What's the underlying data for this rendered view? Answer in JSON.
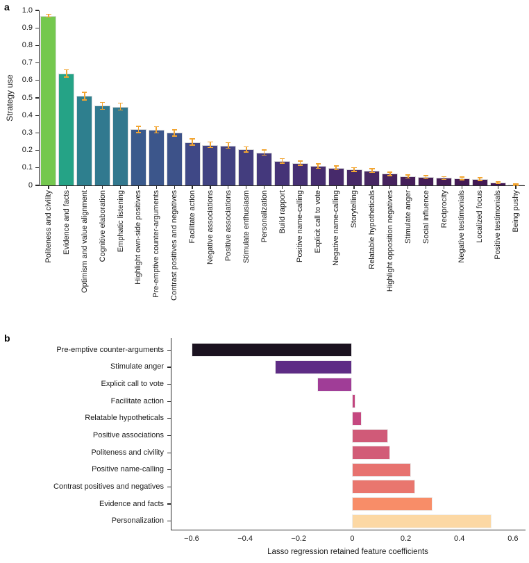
{
  "figure": {
    "panel_a_label": "a",
    "panel_b_label": "b",
    "background": "#ffffff",
    "text_color": "#1a1a1a",
    "axis_color": "#2b2b2b"
  },
  "chart_data": [
    {
      "id": "a",
      "type": "bar",
      "title": "",
      "xlabel": "",
      "ylabel": "Strategy use",
      "ylim": [
        0,
        1.0
      ],
      "ytick_values": [
        0,
        0.1,
        0.2,
        0.3,
        0.4,
        0.5,
        0.6,
        0.7,
        0.8,
        0.9,
        1.0
      ],
      "ytick_labels": [
        "0",
        "0.1",
        "0.2",
        "0.3",
        "0.4",
        "0.5",
        "0.6",
        "0.7",
        "0.8",
        "0.9",
        "1.0"
      ],
      "grid": false,
      "legend": "none",
      "error_bar_color": "#f2a532",
      "bar_edge_color": "#dcdcdc",
      "categories": [
        "Politeness and civility",
        "Evidence and facts",
        "Optimism and value alignment",
        "Cognitive elaboration",
        "Emphatic listening",
        "Highlight own-side positives",
        "Pre-emptive counter-arguments",
        "Contrast positives and negatives",
        "Facilitate action",
        "Negative associations",
        "Positive associations",
        "Stimulate enthusiasm",
        "Personalization",
        "Build rapport",
        "Positive name-calling",
        "Explicit call to vote",
        "Negative name-calling",
        "Storytelling",
        "Relatable hypotheticals",
        "Highlight opposition negatives",
        "Stimulate anger",
        "Social influence",
        "Reciprocity",
        "Negative testimonials",
        "Localized focus",
        "Positive testimonials",
        "Being pushy"
      ],
      "values": [
        0.97,
        0.64,
        0.51,
        0.455,
        0.45,
        0.32,
        0.318,
        0.3,
        0.248,
        0.232,
        0.228,
        0.205,
        0.188,
        0.14,
        0.128,
        0.11,
        0.1,
        0.09,
        0.085,
        0.066,
        0.05,
        0.046,
        0.042,
        0.04,
        0.035,
        0.015,
        0.005
      ],
      "errors": [
        0.008,
        0.02,
        0.022,
        0.02,
        0.02,
        0.018,
        0.018,
        0.018,
        0.018,
        0.016,
        0.016,
        0.015,
        0.015,
        0.013,
        0.012,
        0.012,
        0.011,
        0.011,
        0.011,
        0.01,
        0.009,
        0.009,
        0.008,
        0.008,
        0.008,
        0.005,
        0.004
      ],
      "bar_colors": [
        "#74c84e",
        "#25a386",
        "#2e7f8e",
        "#31798f",
        "#32788e",
        "#3a5a8c",
        "#3c568b",
        "#3d5289",
        "#3f4886",
        "#414382",
        "#424181",
        "#433d7e",
        "#44387c",
        "#453377",
        "#463073",
        "#462d6f",
        "#472a6b",
        "#472967",
        "#472763",
        "#46235e",
        "#451f5a",
        "#441d57",
        "#441c56",
        "#431b55",
        "#431a54",
        "#421654",
        "#421253"
      ]
    },
    {
      "id": "b",
      "type": "bar-horizontal",
      "title": "",
      "xlabel": "Lasso regression retained feature coefficients",
      "ylabel": "",
      "xlim": [
        -0.675,
        0.647
      ],
      "xtick_values": [
        -0.6,
        -0.4,
        -0.2,
        0,
        0.2,
        0.4,
        0.6
      ],
      "xtick_labels": [
        "−0.6",
        "−0.4",
        "−0.2",
        "0",
        "0.2",
        "0.4",
        "0.6"
      ],
      "grid": false,
      "legend": "none",
      "bar_edge_color": "#ededed",
      "categories": [
        "Pre-emptive counter-arguments",
        "Stimulate anger",
        "Explicit call to vote",
        "Facilitate action",
        "Relatable hypotheticals",
        "Positive associations",
        "Politeness and civility",
        "Positive name-calling",
        "Contrast positives and negatives",
        "Evidence and facts",
        "Personalization"
      ],
      "values": [
        -0.6,
        -0.29,
        -0.13,
        0.012,
        0.035,
        0.135,
        0.142,
        0.22,
        0.235,
        0.3,
        0.52
      ],
      "bar_colors": [
        "#1b1220",
        "#5e2c85",
        "#a03d97",
        "#c2447f",
        "#c54880",
        "#d05a78",
        "#d25c77",
        "#e7726f",
        "#e9766e",
        "#f88d68",
        "#fcd8a4"
      ]
    }
  ]
}
